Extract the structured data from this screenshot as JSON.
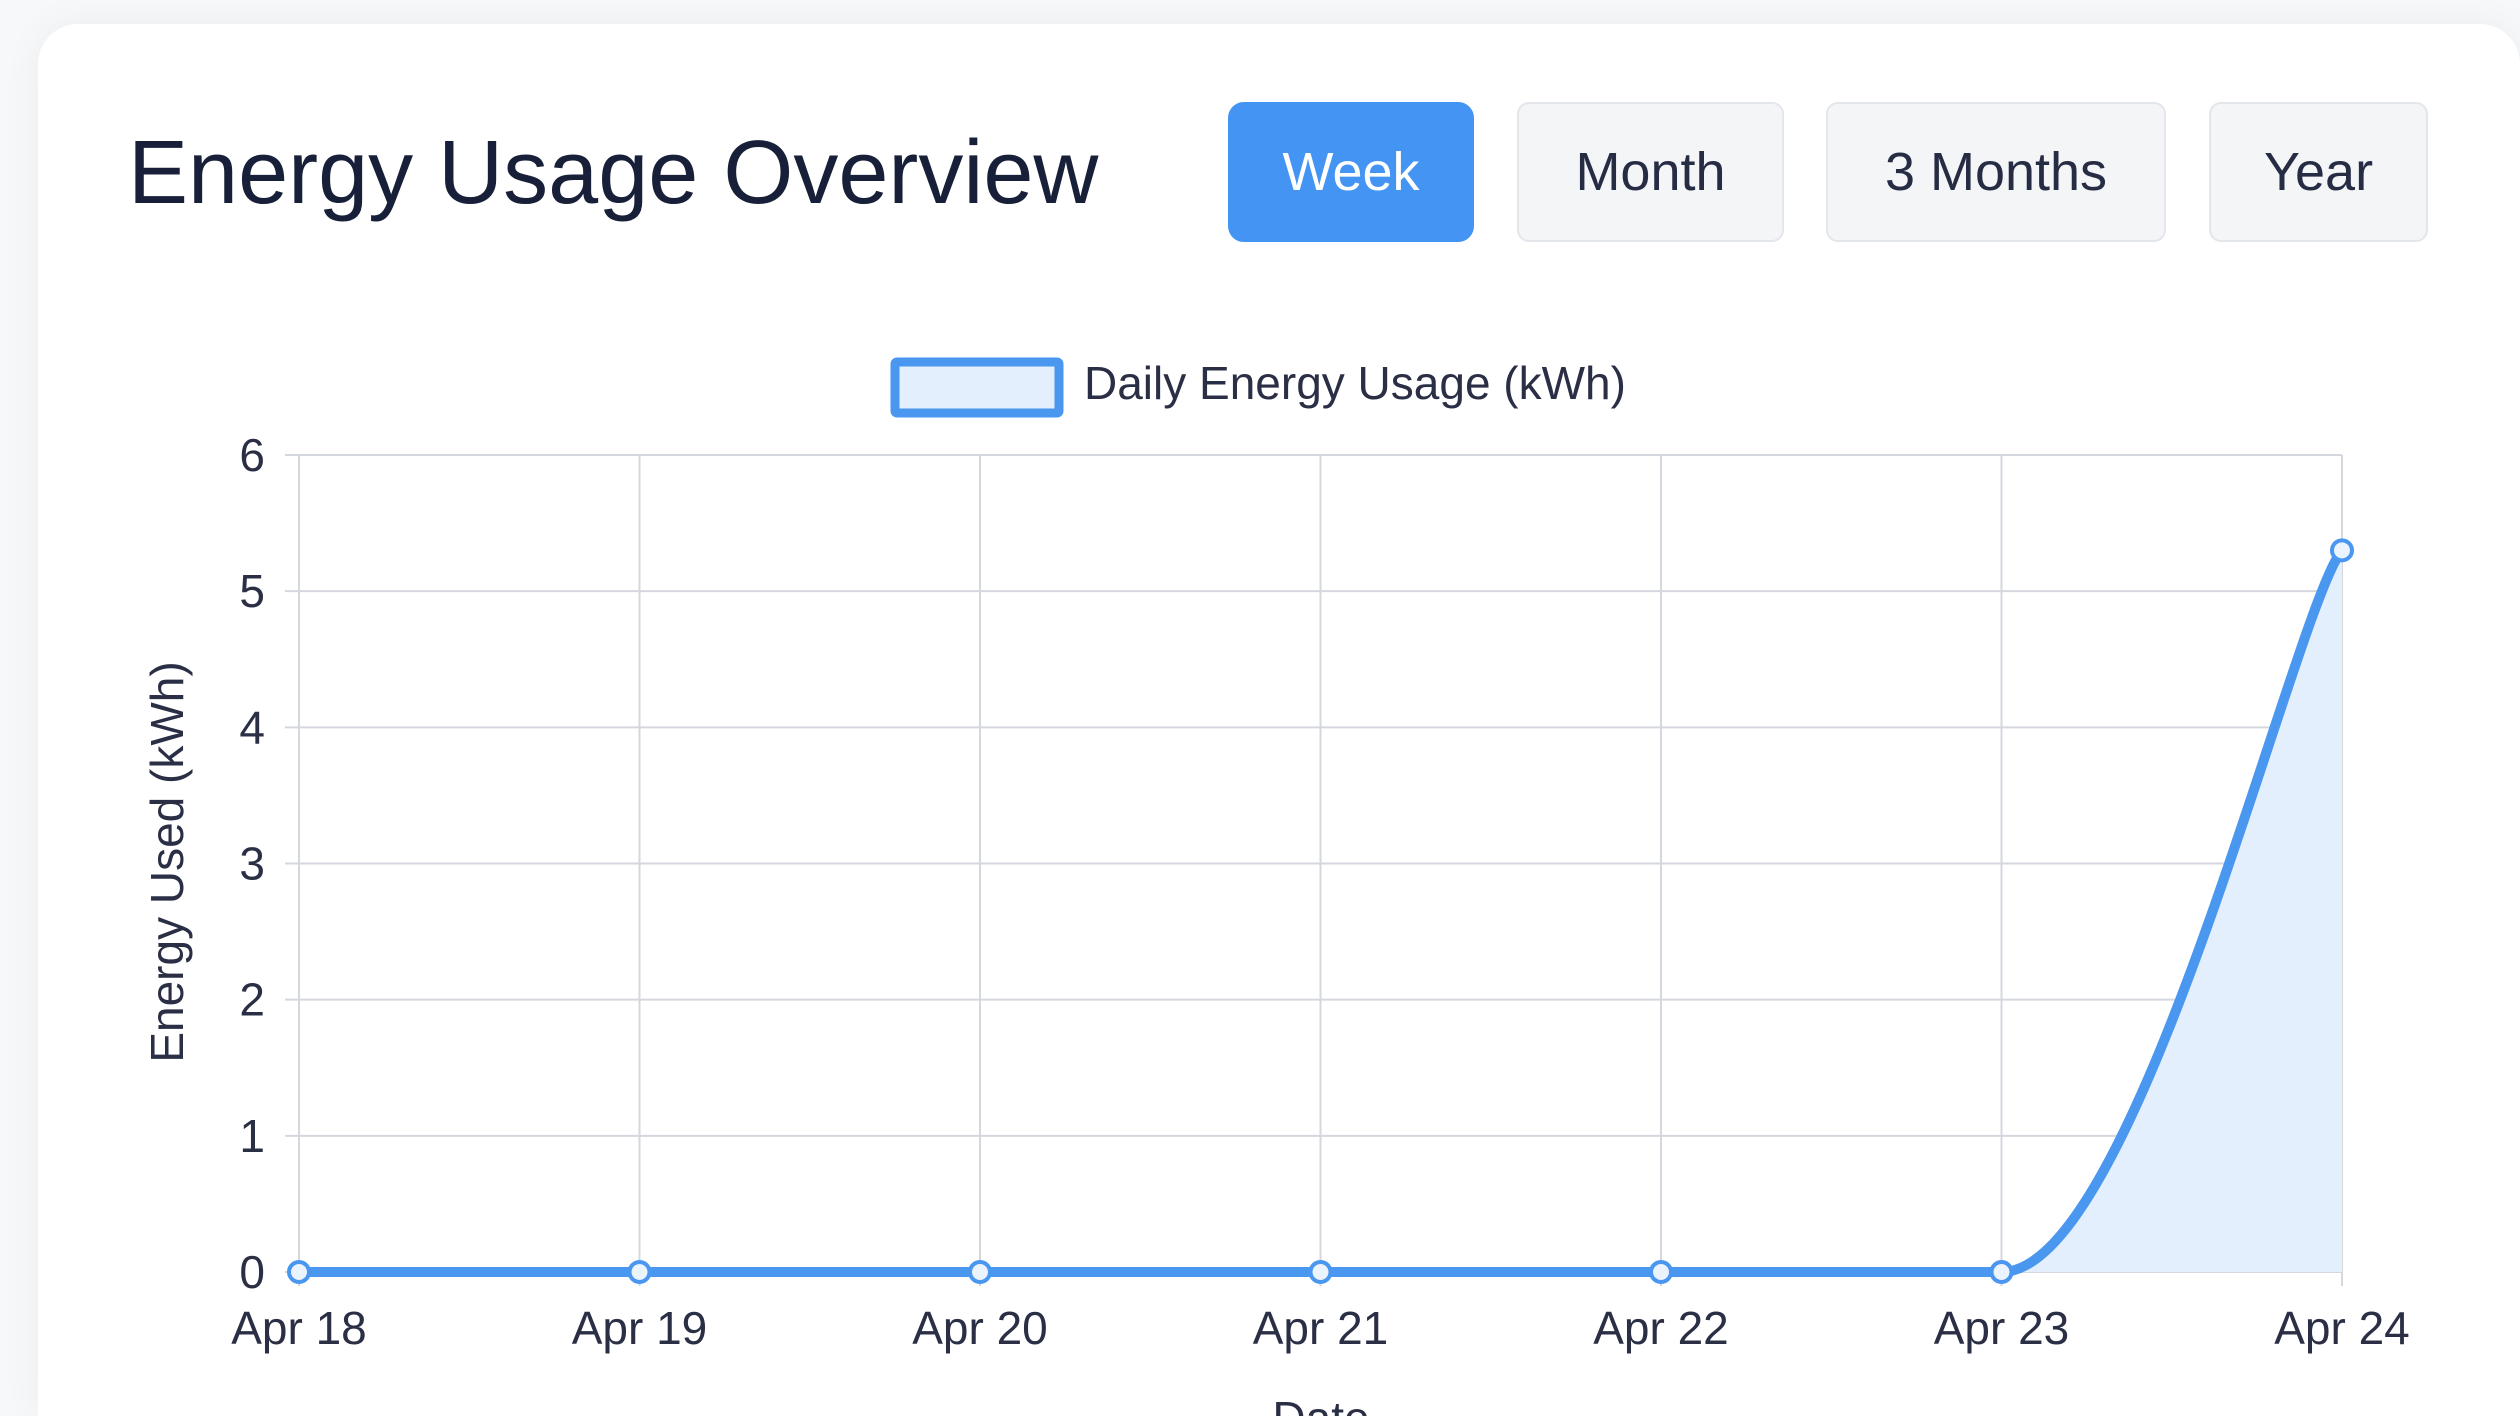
{
  "header": {
    "title": "Energy Usage Overview"
  },
  "range_buttons": [
    {
      "label": "Week",
      "active": true
    },
    {
      "label": "Month",
      "active": false
    },
    {
      "label": "3 Months",
      "active": false
    },
    {
      "label": "Year",
      "active": false
    }
  ],
  "colors": {
    "accent": "#4495f3",
    "line": "#4a97ef",
    "fill": "#e3effc",
    "grid": "#d4d7dd",
    "text": "#2b2f45"
  },
  "chart_data": {
    "type": "area",
    "categories": [
      "Apr 18",
      "Apr 19",
      "Apr 20",
      "Apr 21",
      "Apr 22",
      "Apr 23",
      "Apr 24"
    ],
    "series": [
      {
        "name": "Daily Energy Usage (kWh)",
        "values": [
          0,
          0,
          0,
          0,
          0,
          0,
          5.3
        ]
      }
    ],
    "xlabel": "Date",
    "ylabel": "Energy Used (kWh)",
    "ylim": [
      0,
      6
    ],
    "yticks": [
      "0",
      "1",
      "2",
      "3",
      "4",
      "5",
      "6"
    ],
    "grid": true,
    "legend_position": "top-center"
  }
}
